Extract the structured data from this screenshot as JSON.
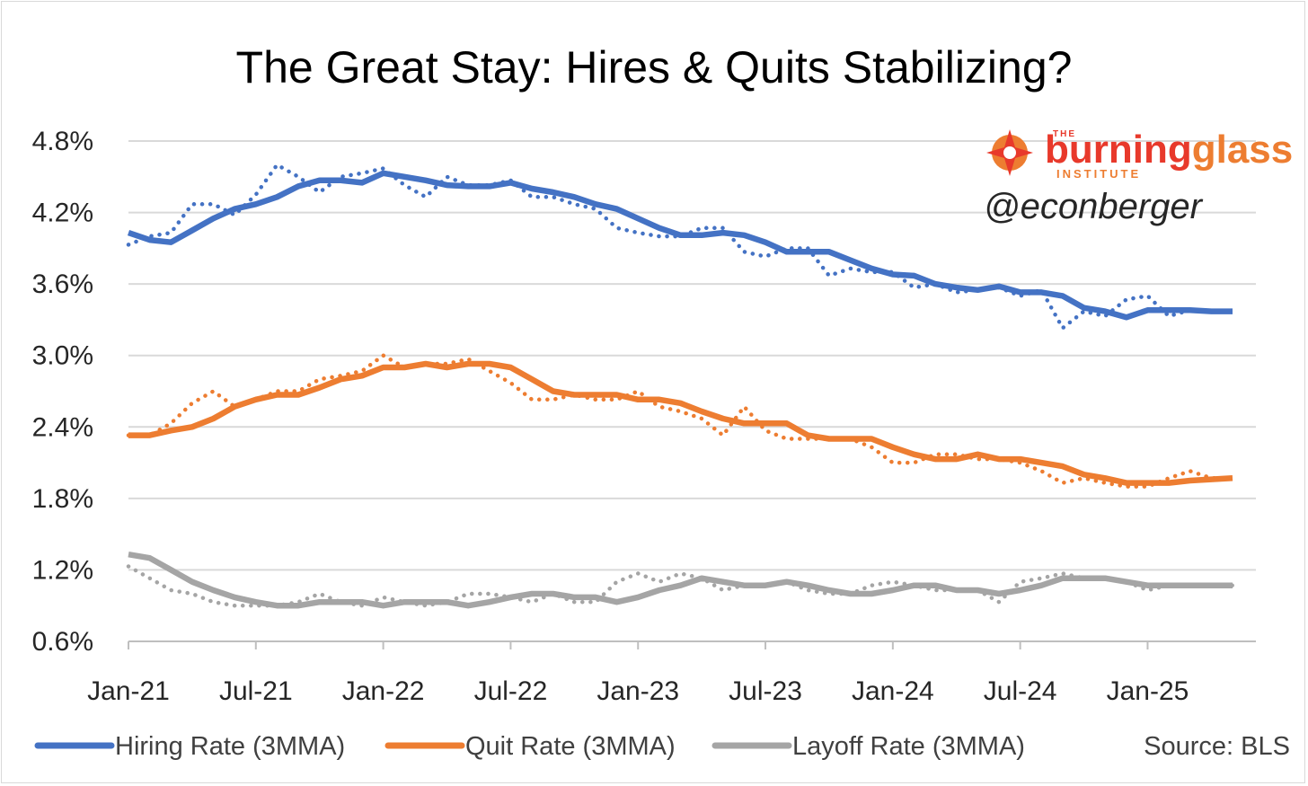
{
  "chart_data": {
    "type": "line",
    "title": "The Great Stay: Hires & Quits Stabilizing?",
    "source": "Source: BLS",
    "watermark": {
      "brand_prefix": "THE",
      "brand_word1": "burning",
      "brand_word2": "glass",
      "brand_sub": "INSTITUTE",
      "handle": "@econberger"
    },
    "ylim": [
      0.6,
      4.8
    ],
    "yticks": [
      "4.8%",
      "4.2%",
      "3.6%",
      "3.0%",
      "2.4%",
      "1.8%",
      "1.2%",
      "0.6%"
    ],
    "ytick_values": [
      4.8,
      4.2,
      3.6,
      3.0,
      2.4,
      1.8,
      1.2,
      0.6
    ],
    "xticks": [
      "Jan-21",
      "Jul-21",
      "Jan-22",
      "Jul-22",
      "Jan-23",
      "Jul-23",
      "Jan-24",
      "Jul-24",
      "Jan-25"
    ],
    "xtick_index": [
      0,
      6,
      12,
      18,
      24,
      30,
      36,
      42,
      48
    ],
    "grid": true,
    "legend_position": "bottom",
    "series": [
      {
        "name": "Hiring Rate (3MMA)",
        "color": "#4472C4",
        "ma": [
          4.03,
          3.97,
          3.95,
          4.05,
          4.15,
          4.23,
          4.27,
          4.33,
          4.42,
          4.47,
          4.47,
          4.45,
          4.53,
          4.5,
          4.47,
          4.43,
          4.42,
          4.42,
          4.45,
          4.4,
          4.37,
          4.33,
          4.27,
          4.23,
          4.15,
          4.07,
          4.01,
          4.01,
          4.03,
          4.01,
          3.95,
          3.87,
          3.87,
          3.87,
          3.8,
          3.73,
          3.68,
          3.67,
          3.6,
          3.57,
          3.55,
          3.58,
          3.53,
          3.53,
          3.5,
          3.4,
          3.37,
          3.32,
          3.38,
          3.38,
          3.38,
          3.37,
          3.37
        ],
        "raw": [
          3.93,
          4.0,
          4.03,
          4.27,
          4.27,
          4.18,
          4.35,
          4.6,
          4.5,
          4.37,
          4.5,
          4.53,
          4.57,
          4.43,
          4.33,
          4.5,
          4.43,
          4.43,
          4.47,
          4.33,
          4.33,
          4.27,
          4.23,
          4.07,
          4.03,
          4.0,
          4.0,
          4.07,
          4.07,
          3.87,
          3.83,
          3.9,
          3.9,
          3.67,
          3.73,
          3.7,
          3.7,
          3.57,
          3.6,
          3.53,
          3.55,
          3.57,
          3.5,
          3.55,
          3.23,
          3.37,
          3.33,
          3.47,
          3.5,
          3.33,
          3.38,
          3.37,
          3.37
        ]
      },
      {
        "name": "Quit Rate (3MMA)",
        "color": "#ED7D31",
        "ma": [
          2.33,
          2.33,
          2.37,
          2.4,
          2.47,
          2.57,
          2.63,
          2.67,
          2.67,
          2.73,
          2.8,
          2.83,
          2.9,
          2.9,
          2.93,
          2.9,
          2.93,
          2.93,
          2.9,
          2.8,
          2.7,
          2.67,
          2.67,
          2.67,
          2.63,
          2.63,
          2.6,
          2.53,
          2.47,
          2.43,
          2.43,
          2.43,
          2.33,
          2.3,
          2.3,
          2.3,
          2.23,
          2.17,
          2.13,
          2.13,
          2.17,
          2.13,
          2.13,
          2.1,
          2.07,
          2.0,
          1.97,
          1.93,
          1.93,
          1.93,
          1.95,
          1.96,
          1.97
        ],
        "raw": [
          2.33,
          2.33,
          2.43,
          2.6,
          2.7,
          2.57,
          2.63,
          2.7,
          2.7,
          2.8,
          2.83,
          2.87,
          3.0,
          2.9,
          2.93,
          2.93,
          2.97,
          2.87,
          2.77,
          2.63,
          2.63,
          2.67,
          2.63,
          2.63,
          2.7,
          2.57,
          2.53,
          2.47,
          2.33,
          2.57,
          2.37,
          2.3,
          2.3,
          2.3,
          2.3,
          2.23,
          2.1,
          2.1,
          2.17,
          2.17,
          2.13,
          2.13,
          2.1,
          2.03,
          1.93,
          1.97,
          1.93,
          1.9,
          1.9,
          1.97,
          2.03,
          1.97,
          1.97
        ]
      },
      {
        "name": "Layoff Rate (3MMA)",
        "color": "#A5A5A5",
        "ma": [
          1.33,
          1.3,
          1.2,
          1.1,
          1.03,
          0.97,
          0.93,
          0.9,
          0.9,
          0.93,
          0.93,
          0.93,
          0.9,
          0.93,
          0.93,
          0.93,
          0.9,
          0.93,
          0.97,
          1.0,
          1.0,
          0.97,
          0.97,
          0.93,
          0.97,
          1.03,
          1.07,
          1.13,
          1.1,
          1.07,
          1.07,
          1.1,
          1.07,
          1.03,
          1.0,
          1.0,
          1.03,
          1.07,
          1.07,
          1.03,
          1.03,
          1.0,
          1.03,
          1.07,
          1.13,
          1.13,
          1.13,
          1.1,
          1.07,
          1.07,
          1.07,
          1.07,
          1.07
        ],
        "raw": [
          1.23,
          1.13,
          1.03,
          1.0,
          0.93,
          0.9,
          0.9,
          0.9,
          0.93,
          1.0,
          0.93,
          0.9,
          0.97,
          0.93,
          0.9,
          0.93,
          1.0,
          1.0,
          0.97,
          0.93,
          1.0,
          0.93,
          0.93,
          1.1,
          1.17,
          1.1,
          1.17,
          1.13,
          1.03,
          1.07,
          1.07,
          1.1,
          1.03,
          1.0,
          1.0,
          1.07,
          1.1,
          1.07,
          1.03,
          1.03,
          1.03,
          0.93,
          1.1,
          1.13,
          1.17,
          1.13,
          1.13,
          1.1,
          1.03,
          1.07,
          1.07,
          1.07,
          1.07
        ]
      }
    ]
  }
}
